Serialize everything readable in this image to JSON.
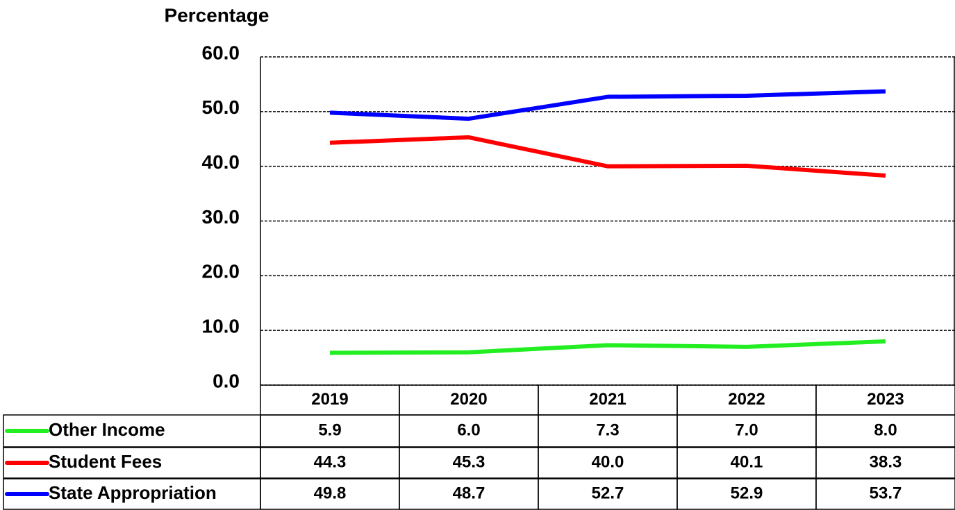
{
  "chart_data": {
    "type": "line",
    "title": "Percentage",
    "categories": [
      "2019",
      "2020",
      "2021",
      "2022",
      "2023"
    ],
    "series": [
      {
        "name": "Other Income",
        "color": "#22ee22",
        "values": [
          5.9,
          6.0,
          7.3,
          7.0,
          8.0
        ],
        "value_labels": [
          "5.9",
          "6.0",
          "7.3",
          "7.0",
          "8.0"
        ]
      },
      {
        "name": "Student Fees",
        "color": "#ff0000",
        "values": [
          44.3,
          45.3,
          40.0,
          40.1,
          38.3
        ],
        "value_labels": [
          "44.3",
          "45.3",
          "40.0",
          "40.1",
          "38.3"
        ]
      },
      {
        "name": "State Appropriation",
        "color": "#0000ff",
        "values": [
          49.8,
          48.7,
          52.7,
          52.9,
          53.7
        ],
        "value_labels": [
          "49.8",
          "48.7",
          "52.7",
          "52.9",
          "53.7"
        ]
      }
    ],
    "ylim": [
      0,
      60
    ],
    "yticks": [
      {
        "value": 0,
        "label": "0.0"
      },
      {
        "value": 10,
        "label": "10.0"
      },
      {
        "value": 20,
        "label": "20.0"
      },
      {
        "value": 30,
        "label": "30.0"
      },
      {
        "value": 40,
        "label": "40.0"
      },
      {
        "value": 50,
        "label": "50.0"
      },
      {
        "value": 60,
        "label": "60.0"
      }
    ],
    "grid": true
  }
}
